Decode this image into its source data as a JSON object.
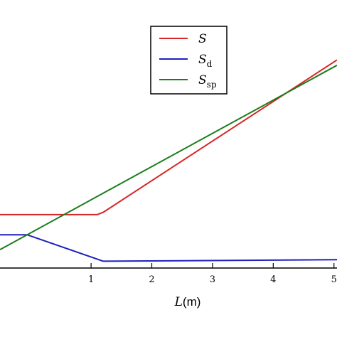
{
  "chart_data": {
    "type": "line",
    "xlabel_var": "L",
    "xlabel_unit": "(m)",
    "xlim": [
      -0.5,
      5.05
    ],
    "ylim": [
      0,
      1.0
    ],
    "xticks": [
      1,
      2,
      3,
      4,
      5
    ],
    "xtick_labels": [
      "1",
      "2",
      "3",
      "4",
      "5"
    ],
    "grid": false,
    "legend_position": "top-center",
    "series": [
      {
        "id": "S",
        "legend_main": "S",
        "legend_sub": "",
        "color": "#d62728",
        "x": [
          -0.5,
          1.1,
          1.2,
          5.05
        ],
        "y": [
          0.18,
          0.18,
          0.188,
          0.702
        ]
      },
      {
        "id": "Sd",
        "legend_main": "S",
        "legend_sub": "d",
        "color": "#1f1fbf",
        "x": [
          -0.5,
          -0.05,
          1.2,
          5.05
        ],
        "y": [
          0.112,
          0.112,
          0.023,
          0.028
        ]
      },
      {
        "id": "Ssp",
        "legend_main": "S",
        "legend_sub": "sp",
        "color": "#1a7d1a",
        "x": [
          -0.5,
          5.05
        ],
        "y": [
          0.062,
          0.684
        ]
      }
    ]
  }
}
